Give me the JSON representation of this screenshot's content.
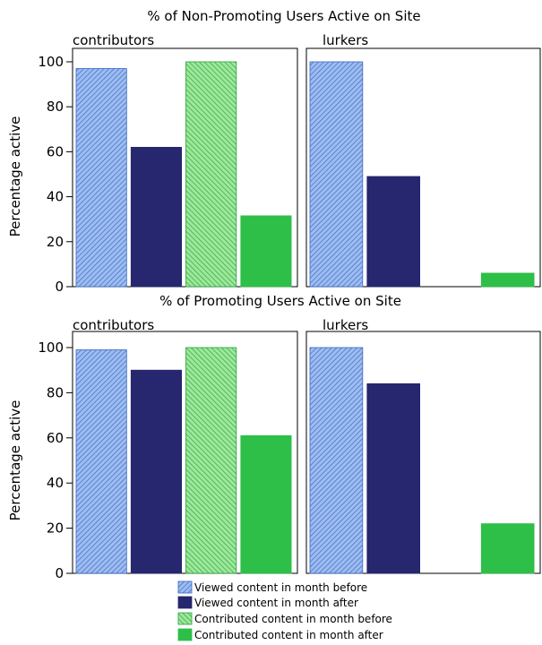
{
  "chart_data": [
    {
      "type": "bar",
      "title": "% of Non-Promoting Users Active on Site",
      "ylabel": "Percentage active",
      "ylim": [
        0,
        100
      ],
      "yticks": [
        0,
        20,
        40,
        60,
        80,
        100
      ],
      "panels": [
        {
          "label": "contributors",
          "values": [
            97,
            62,
            100,
            31.5
          ]
        },
        {
          "label": "lurkers",
          "values": [
            100,
            49,
            0,
            6
          ]
        }
      ]
    },
    {
      "type": "bar",
      "title": "% of Promoting Users Active on Site",
      "ylabel": "Percentage active",
      "ylim": [
        0,
        100
      ],
      "yticks": [
        0,
        20,
        40,
        60,
        80,
        100
      ],
      "panels": [
        {
          "label": "contributors",
          "values": [
            99,
            90,
            100,
            61
          ]
        },
        {
          "label": "lurkers",
          "values": [
            100,
            84,
            0,
            22
          ]
        }
      ]
    }
  ],
  "legend": {
    "items": [
      {
        "label": "Viewed content in month before",
        "color": "#9dbdf0",
        "hatched": true
      },
      {
        "label": "Viewed content in month after",
        "color": "#26276e",
        "hatched": false
      },
      {
        "label": "Contributed content in month before",
        "color": "#8ee08a",
        "hatched": true
      },
      {
        "label": "Contributed content in month after",
        "color": "#2dbf48",
        "hatched": false
      }
    ]
  }
}
